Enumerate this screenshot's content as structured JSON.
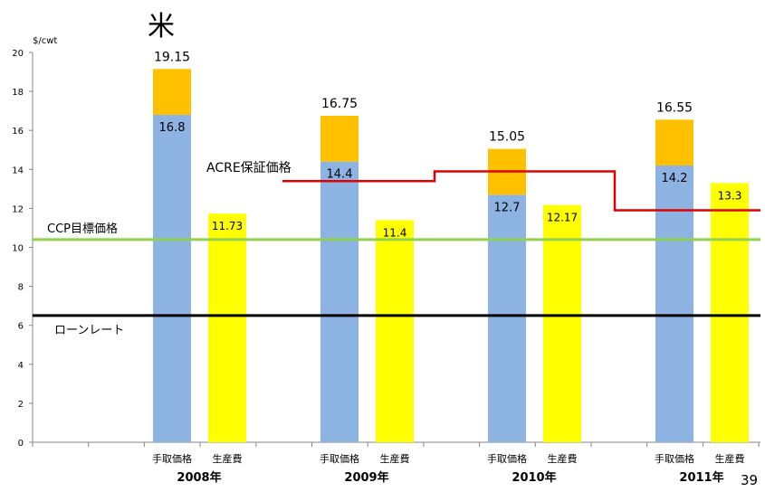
{
  "page": {
    "title": "米",
    "page_number": "39"
  },
  "chart_data": {
    "type": "bar",
    "stacked": true,
    "ylabel": "$/cwt",
    "ylim": [
      0,
      20
    ],
    "yticks": [
      0,
      2,
      4,
      6,
      8,
      10,
      12,
      14,
      16,
      18,
      20
    ],
    "grid": false,
    "categories": [
      {
        "year": "2008年",
        "bars": [
          {
            "label": "手取価格",
            "base": 16.8,
            "total": 19.15
          },
          {
            "label": "生産費",
            "value": 11.73
          }
        ]
      },
      {
        "year": "2009年",
        "bars": [
          {
            "label": "手取価格",
            "base": 14.4,
            "total": 16.75
          },
          {
            "label": "生産費",
            "value": 11.4
          }
        ]
      },
      {
        "year": "2010年",
        "bars": [
          {
            "label": "手取価格",
            "base": 12.7,
            "total": 15.05
          },
          {
            "label": "生産費",
            "value": 12.17
          }
        ]
      },
      {
        "year": "2011年",
        "bars": [
          {
            "label": "手取価格",
            "base": 14.2,
            "total": 16.55
          },
          {
            "label": "生産費",
            "value": 13.3
          }
        ]
      }
    ],
    "reference_lines": [
      {
        "label": "CCP目標価格",
        "value": 10.4,
        "color": "#92d050"
      },
      {
        "label": "ローンレート",
        "value": 6.5,
        "color": "#000000"
      }
    ],
    "acre_line": {
      "label": "ACRE保証価格",
      "color": "#e00000",
      "steps": [
        {
          "year": "2009年",
          "value": 13.4
        },
        {
          "year": "2010年",
          "value": 13.9
        },
        {
          "year": "2011年",
          "value": 11.9
        }
      ]
    },
    "colors": {
      "base": "#8db3e2",
      "top": "#ffc000",
      "cost": "#ffff00"
    }
  }
}
